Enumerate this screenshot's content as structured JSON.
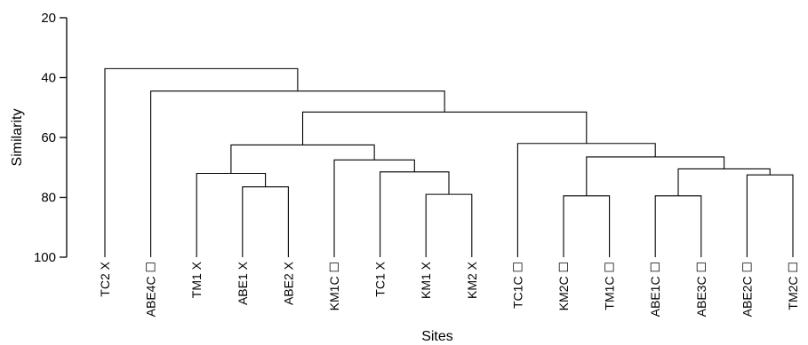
{
  "chart_data": {
    "type": "dendrogram",
    "xlabel": "Sites",
    "ylabel": "Similarity",
    "ylim": [
      20,
      100
    ],
    "yticks": [
      20,
      40,
      60,
      80,
      100
    ],
    "y_inverted": true,
    "grid": false,
    "leaves": [
      "TC2 X",
      "ABE4C ☐",
      "TM1 X",
      "ABE1 X",
      "ABE2 X",
      "KM1C ☐",
      "TC1 X",
      "KM1 X",
      "KM2 X",
      "TC1C ☐",
      "KM2C ☐",
      "TM1C ☐",
      "ABE1C ☐",
      "ABE3C ☐",
      "ABE2C ☐",
      "TM2C ☐"
    ],
    "merges": [
      {
        "left": "ABE1 X",
        "right": "ABE2 X",
        "similarity": 76.5
      },
      {
        "left": "KM1 X",
        "right": "KM2 X",
        "similarity": 79
      },
      {
        "left": "KM2C ☐",
        "right": "TM1C ☐",
        "similarity": 79.5
      },
      {
        "left": "ABE1C ☐",
        "right": "ABE3C ☐",
        "similarity": 79.5
      },
      {
        "left": "ABE2C ☐",
        "right": "TM2C ☐",
        "similarity": 72.5
      },
      {
        "left": "TM1 X",
        "right": "ABE1 X + ABE2 X",
        "similarity": 72
      },
      {
        "left": "TC1 X",
        "right": "KM1 X + KM2 X",
        "similarity": 71.5
      },
      {
        "left": "ABE1C ☐ + ABE3C ☐",
        "right": "ABE2C ☐ + TM2C ☐",
        "similarity": 70.5
      },
      {
        "left": "KM1C ☐",
        "right": "TC1 X + KM1 X + KM2 X",
        "similarity": 67.5
      },
      {
        "left": "KM2C ☐ + TM1C ☐",
        "right": "ABE1C ☐ + ABE3C ☐ + ABE2C ☐ + TM2C ☐",
        "similarity": 66.5
      },
      {
        "left": "TM1 X + ABE1 X + ABE2 X",
        "right": "KM1C ☐ + TC1 X + KM1 X + KM2 X",
        "similarity": 62.5
      },
      {
        "left": "TC1C ☐",
        "right": "KM2C ☐ + TM1C ☐ + ABE1C ☐ + ABE3C ☐ + ABE2C ☐ + TM2C ☐",
        "similarity": 62
      },
      {
        "left": "TM1 X ... KM2 X",
        "right": "TC1C ☐ ... TM2C ☐",
        "similarity": 51.5
      },
      {
        "left": "ABE4C ☐",
        "right": "TM1 X ... TM2C ☐",
        "similarity": 44.5
      },
      {
        "left": "TC2 X",
        "right": "ABE4C ☐ ... TM2C ☐",
        "similarity": 37
      }
    ]
  }
}
